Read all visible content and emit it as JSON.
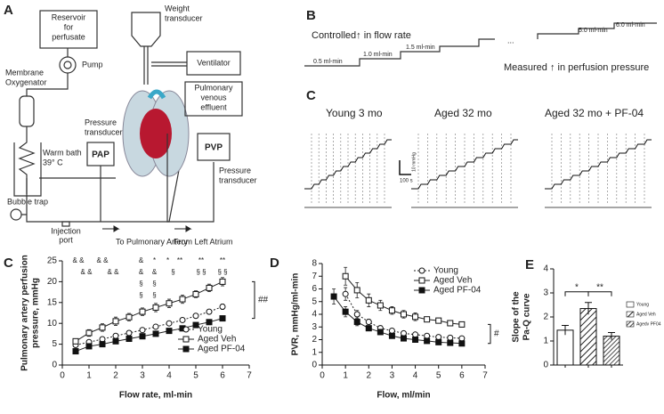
{
  "panel_labels": [
    "A",
    "B",
    "C",
    "C",
    "D",
    "E"
  ],
  "diagram_a": {
    "reservoir": [
      "Reservoir",
      "for",
      "perfusate"
    ],
    "oxygenator": [
      "Membrane",
      "Oxygenator"
    ],
    "pump": "Pump",
    "warm_bath": [
      "Warm bath",
      "39° C"
    ],
    "bubble_trap": "Bubble trap",
    "injection_port": [
      "Injection",
      "port"
    ],
    "pap_transducer": [
      "Pressure",
      "transducer"
    ],
    "pap": "PAP",
    "to_pa": "To Pulmonary Artery",
    "weight_transducer": [
      "Weight",
      "transducer"
    ],
    "ventilator": "Ventilator",
    "effluent": [
      "Pulmonary",
      "venous",
      "effluent"
    ],
    "pvp": "PVP",
    "pvp_transducer": [
      "Pressure",
      "transducer"
    ],
    "from_la": "From Left Atrium"
  },
  "diagram_b": {
    "controlled": "Controlled↑ in flow rate",
    "steps": [
      "0.5 ml-min",
      "1.0 ml-min",
      "1.5 ml-min",
      "...",
      "5.0 ml-min",
      "6.0 ml-min"
    ],
    "measured": "Measured ↑ in perfusion pressure"
  },
  "traces_c": {
    "titles": [
      "Young 3 mo",
      "Aged 32 mo",
      "Aged 32 mo + PF-04"
    ],
    "scale_y": "10 mmHg",
    "scale_x": "100 s"
  },
  "chart_data": [
    {
      "type": "line",
      "x_label": "Flow rate, ml-min",
      "y_label": [
        "Pulmonary artery perfusion",
        "pressure, mmHg"
      ],
      "x": [
        0.5,
        1,
        1.5,
        2,
        2.5,
        3,
        3.5,
        4,
        4.5,
        5,
        5.5,
        6
      ],
      "xlim": [
        0,
        7
      ],
      "xticks": [
        0,
        1,
        2,
        3,
        4,
        5,
        6,
        7
      ],
      "ylim": [
        0,
        25
      ],
      "yticks": [
        0,
        5,
        10,
        15,
        20,
        25
      ],
      "legend": "lower right",
      "series": [
        {
          "name": "Young",
          "marker": "circle-open",
          "dash": true,
          "color": "#222",
          "values": [
            4.8,
            5.5,
            6.2,
            7.0,
            7.7,
            8.4,
            9.2,
            10.0,
            10.8,
            11.8,
            12.8,
            14.0
          ],
          "errors": [
            0.4,
            0.4,
            0.4,
            0.4,
            0.4,
            0.4,
            0.4,
            0.4,
            0.4,
            0.5,
            0.5,
            0.6
          ]
        },
        {
          "name": "Aged Veh",
          "marker": "square-open",
          "dash": false,
          "color": "#222",
          "values": [
            5.7,
            7.7,
            9.0,
            10.5,
            11.5,
            12.8,
            13.8,
            14.8,
            15.8,
            17.0,
            18.5,
            20.0
          ],
          "errors": [
            0.5,
            0.8,
            0.9,
            1.0,
            0.9,
            0.9,
            1.0,
            1.0,
            1.0,
            0.8,
            0.9,
            1.0
          ]
        },
        {
          "name": "Aged PF-04",
          "marker": "square-filled",
          "dash": false,
          "color": "#222",
          "values": [
            3.3,
            4.5,
            5.0,
            5.7,
            6.3,
            6.9,
            7.5,
            8.2,
            8.8,
            9.6,
            10.3,
            11.2
          ],
          "errors": [
            0.3,
            0.3,
            0.3,
            0.3,
            0.3,
            0.3,
            0.3,
            0.3,
            0.3,
            0.3,
            0.3,
            0.4
          ]
        }
      ],
      "annotations": [
        [
          "& &",
          "& &",
          "&",
          "*",
          "*",
          "**",
          "**",
          "**"
        ],
        [
          "& &",
          "& &",
          "&",
          "&",
          "§",
          "§ §",
          "§ §"
        ],
        [
          "§",
          "§"
        ],
        [
          "§",
          "§"
        ]
      ],
      "bracket_label": "##"
    },
    {
      "type": "line",
      "x_label": "Flow, ml/min",
      "y_label": [
        "PVR, mmHg/ml-min"
      ],
      "x": [
        0.5,
        1,
        1.5,
        2,
        2.5,
        3,
        3.5,
        4,
        4.5,
        5,
        5.5,
        6
      ],
      "xlim": [
        0,
        7
      ],
      "xticks": [
        0,
        1,
        2,
        3,
        4,
        5,
        6,
        7
      ],
      "ylim": [
        0,
        8
      ],
      "yticks": [
        0,
        1,
        2,
        3,
        4,
        5,
        6,
        7,
        8
      ],
      "legend": "upper right",
      "series": [
        {
          "name": "Young",
          "marker": "circle-open",
          "dash": true,
          "color": "#222",
          "values": [
            null,
            5.6,
            4.0,
            3.4,
            2.9,
            2.7,
            2.5,
            2.4,
            2.3,
            2.2,
            2.15,
            2.1
          ],
          "errors": [
            null,
            0.5,
            0.3,
            0.2,
            0.2,
            0.15,
            0.15,
            0.1,
            0.1,
            0.1,
            0.1,
            0.1
          ]
        },
        {
          "name": "Aged Veh",
          "marker": "square-open",
          "dash": false,
          "color": "#222",
          "values": [
            null,
            7.0,
            5.9,
            5.1,
            4.7,
            4.3,
            4.0,
            3.8,
            3.6,
            3.5,
            3.3,
            3.2
          ],
          "errors": [
            null,
            0.7,
            0.6,
            0.5,
            0.4,
            0.3,
            0.3,
            0.3,
            0.2,
            0.2,
            0.2,
            0.2
          ]
        },
        {
          "name": "Aged PF-04",
          "marker": "square-filled",
          "dash": false,
          "color": "#222",
          "values": [
            5.4,
            4.2,
            3.4,
            2.9,
            2.6,
            2.3,
            2.1,
            2.0,
            1.9,
            1.8,
            1.75,
            1.7
          ],
          "errors": [
            0.6,
            0.4,
            0.3,
            0.2,
            0.2,
            0.15,
            0.1,
            0.1,
            0.1,
            0.1,
            0.1,
            0.1
          ]
        }
      ],
      "bracket_label": "#"
    },
    {
      "type": "bar",
      "y_label": [
        "Slope of the",
        "Pa-Q curve"
      ],
      "categories": [
        "Young",
        "Aged Veh",
        "Agedv PF04"
      ],
      "values": [
        1.45,
        2.35,
        1.2
      ],
      "errors": [
        0.2,
        0.25,
        0.15
      ],
      "patterns": [
        "none",
        "hatch",
        "hatch-dense"
      ],
      "ylim": [
        0,
        4
      ],
      "yticks": [
        0,
        1,
        2,
        3,
        4
      ],
      "annotations": [
        "*",
        "**"
      ]
    }
  ]
}
